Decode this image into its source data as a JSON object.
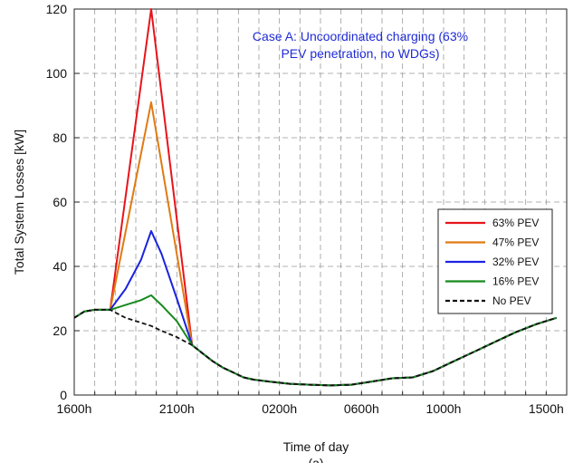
{
  "chart_data": {
    "type": "line",
    "title": "",
    "annotation": [
      "Case A: Uncoordinated charging (63%",
      "PEV penetration, no WDGs)"
    ],
    "xlabel": "Time of day",
    "ylabel": "Total System Losses [kW]",
    "caption": "(a)",
    "x_unit": "hours since 1600h",
    "xlim": [
      0,
      24
    ],
    "ylim": [
      0,
      120
    ],
    "yticks": [
      0,
      20,
      40,
      60,
      80,
      100,
      120
    ],
    "xticks": [
      {
        "x": 0,
        "label": "1600h"
      },
      {
        "x": 5,
        "label": "2100h"
      },
      {
        "x": 10,
        "label": "0200h"
      },
      {
        "x": 14,
        "label": "0600h"
      },
      {
        "x": 18,
        "label": "1000h"
      },
      {
        "x": 23,
        "label": "1500h"
      }
    ],
    "grid": true,
    "legend_position": "right",
    "series": [
      {
        "name": "63% PEV",
        "color": "#e8141b",
        "dash": "solid",
        "x": [
          0,
          0.5,
          1,
          1.75,
          3.75,
          5.75,
          6.25,
          6.75,
          7.25,
          7.75,
          8.25,
          8.75,
          9.5,
          10.5,
          11.5,
          12.5,
          13.5,
          14.5,
          15.5,
          16.5,
          17.5,
          18.5,
          19.5,
          20.5,
          21.5,
          22.5,
          23.5
        ],
        "y": [
          24,
          26,
          26.5,
          26.5,
          120,
          15.5,
          13,
          10.5,
          8.5,
          7,
          5.5,
          4.8,
          4.2,
          3.5,
          3.2,
          3,
          3.2,
          4.2,
          5.2,
          5.5,
          7.5,
          10.5,
          13.5,
          16.5,
          19.5,
          22,
          24
        ]
      },
      {
        "name": "47% PEV",
        "color": "#e07a12",
        "dash": "solid",
        "x": [
          0,
          0.5,
          1,
          1.75,
          3.75,
          5.75,
          6.25,
          6.75,
          7.25,
          7.75,
          8.25,
          8.75,
          9.5,
          10.5,
          11.5,
          12.5,
          13.5,
          14.5,
          15.5,
          16.5,
          17.5,
          18.5,
          19.5,
          20.5,
          21.5,
          22.5,
          23.5
        ],
        "y": [
          24,
          26,
          26.5,
          26.5,
          91,
          15.5,
          13,
          10.5,
          8.5,
          7,
          5.5,
          4.8,
          4.2,
          3.5,
          3.2,
          3,
          3.2,
          4.2,
          5.2,
          5.5,
          7.5,
          10.5,
          13.5,
          16.5,
          19.5,
          22,
          24
        ]
      },
      {
        "name": "32% PEV",
        "color": "#1b23e0",
        "dash": "solid",
        "x": [
          0,
          0.5,
          1,
          1.75,
          2.5,
          3.25,
          3.75,
          4.25,
          5.0,
          5.75,
          6.25,
          6.75,
          7.25,
          7.75,
          8.25,
          8.75,
          9.5,
          10.5,
          11.5,
          12.5,
          13.5,
          14.5,
          15.5,
          16.5,
          17.5,
          18.5,
          19.5,
          20.5,
          21.5,
          22.5,
          23.5
        ],
        "y": [
          24,
          26,
          26.5,
          26.5,
          33,
          42,
          51,
          44,
          30,
          15.5,
          13,
          10.5,
          8.5,
          7,
          5.5,
          4.8,
          4.2,
          3.5,
          3.2,
          3,
          3.2,
          4.2,
          5.2,
          5.5,
          7.5,
          10.5,
          13.5,
          16.5,
          19.5,
          22,
          24
        ]
      },
      {
        "name": "16% PEV",
        "color": "#168a1e",
        "dash": "solid",
        "x": [
          0,
          0.5,
          1,
          1.75,
          2.5,
          3.25,
          3.75,
          4.25,
          5.0,
          5.75,
          6.25,
          6.75,
          7.25,
          7.75,
          8.25,
          8.75,
          9.5,
          10.5,
          11.5,
          12.5,
          13.5,
          14.5,
          15.5,
          16.5,
          17.5,
          18.5,
          19.5,
          20.5,
          21.5,
          22.5,
          23.5
        ],
        "y": [
          24,
          26,
          26.5,
          26.5,
          28,
          29.5,
          31,
          28,
          23,
          15.5,
          13,
          10.5,
          8.5,
          7,
          5.5,
          4.8,
          4.2,
          3.5,
          3.2,
          3,
          3.2,
          4.2,
          5.2,
          5.5,
          7.5,
          10.5,
          13.5,
          16.5,
          19.5,
          22,
          24
        ]
      },
      {
        "name": "No PEV",
        "color": "#111111",
        "dash": "dashed",
        "x": [
          0,
          0.5,
          1,
          1.75,
          2.5,
          3.25,
          3.75,
          4.25,
          5.0,
          5.75,
          6.25,
          6.75,
          7.25,
          7.75,
          8.25,
          8.75,
          9.5,
          10.5,
          11.5,
          12.5,
          13.5,
          14.5,
          15.5,
          16.5,
          17.5,
          18.5,
          19.5,
          20.5,
          21.5,
          22.5,
          23.5
        ],
        "y": [
          24,
          26,
          26.5,
          26.5,
          24,
          22.5,
          21.5,
          20,
          18,
          15.5,
          13,
          10.5,
          8.5,
          7,
          5.5,
          4.8,
          4.2,
          3.5,
          3.2,
          3,
          3.2,
          4.2,
          5.2,
          5.5,
          7.5,
          10.5,
          13.5,
          16.5,
          19.5,
          22,
          24
        ]
      }
    ]
  }
}
